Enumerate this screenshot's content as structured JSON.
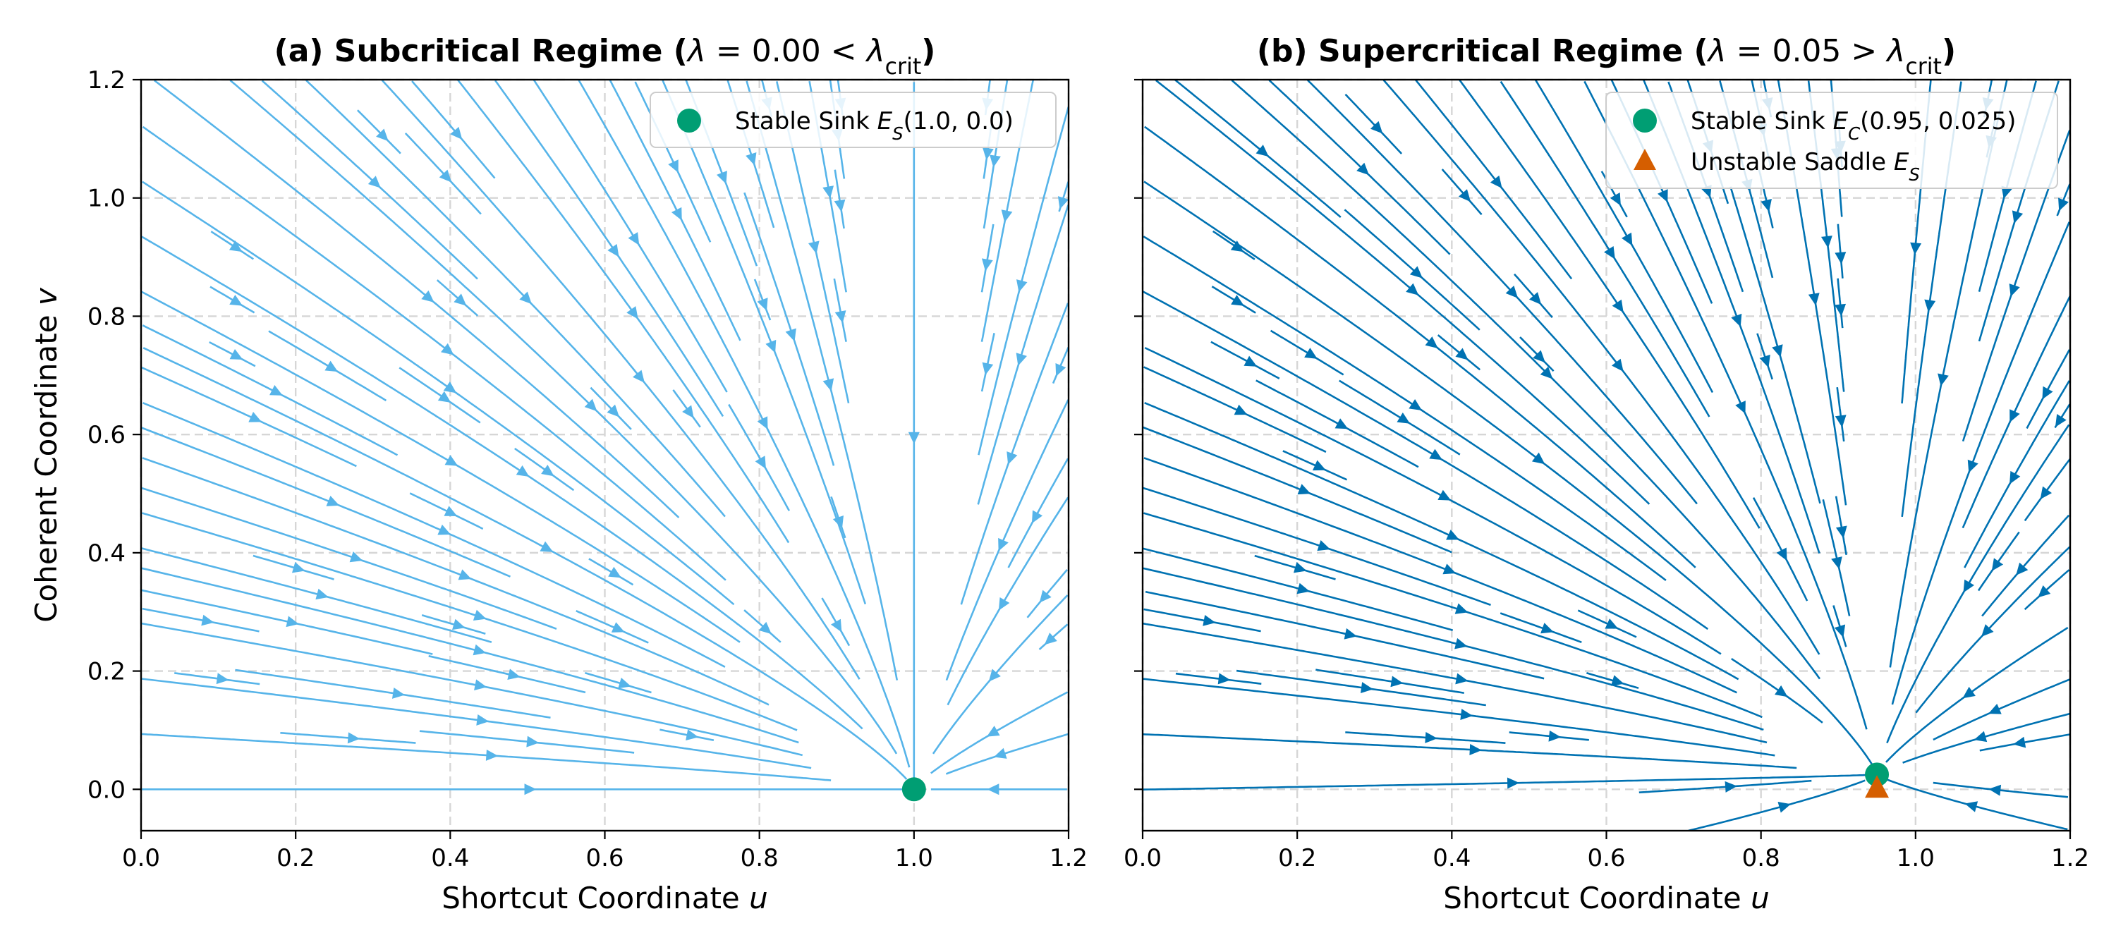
{
  "colors": {
    "streams_left": "#56b4e9",
    "streams_right": "#0072b2",
    "sink": "#009e73",
    "saddle": "#d55e00",
    "grid": "#d6d6d6",
    "axes": "#000000"
  },
  "chart_data": [
    {
      "type": "streamplot",
      "title": {
        "prefix": "(a) Subcritical Regime (",
        "lambda": "λ",
        "relation": " = 0.00 < ",
        "lambda_crit": "λ",
        "crit_sub": "crit",
        "suffix": ")"
      },
      "xlabel": {
        "text": "Shortcut Coordinate ",
        "symbol": "u"
      },
      "ylabel": {
        "text": "Coherent Coordinate ",
        "symbol": "v"
      },
      "xlim": [
        0.0,
        1.2
      ],
      "ylim": [
        -0.07,
        1.2
      ],
      "xticks": [
        "0.0",
        "0.2",
        "0.4",
        "0.6",
        "0.8",
        "1.0",
        "1.2"
      ],
      "yticks": [
        "0.0",
        "0.2",
        "0.4",
        "0.6",
        "0.8",
        "1.0",
        "1.2"
      ],
      "grid": true,
      "legend_position": "upper right",
      "field": {
        "sink": [
          1.0,
          0.0
        ],
        "lambda": 0.0
      },
      "markers": [
        {
          "kind": "sink",
          "x": 1.0,
          "y": 0.0,
          "label": "Stable Sink ",
          "label_symbol": "E",
          "label_sub": "S",
          "label_tail": "(1.0, 0.0)"
        }
      ]
    },
    {
      "type": "streamplot",
      "title": {
        "prefix": "(b) Supercritical Regime (",
        "lambda": "λ",
        "relation": " = 0.05 > ",
        "lambda_crit": "λ",
        "crit_sub": "crit",
        "suffix": ")"
      },
      "xlabel": {
        "text": "Shortcut Coordinate ",
        "symbol": "u"
      },
      "ylabel": {
        "text": "",
        "symbol": ""
      },
      "xlim": [
        0.0,
        1.2
      ],
      "ylim": [
        -0.07,
        1.2
      ],
      "xticks": [
        "0.0",
        "0.2",
        "0.4",
        "0.6",
        "0.8",
        "1.0",
        "1.2"
      ],
      "yticks": [],
      "grid": true,
      "legend_position": "upper right",
      "field": {
        "sink": [
          0.95,
          0.025
        ],
        "lambda": 0.05
      },
      "markers": [
        {
          "kind": "sink",
          "x": 0.95,
          "y": 0.025,
          "label": "Stable Sink ",
          "label_symbol": "E",
          "label_sub": "C",
          "label_tail": "(0.95, 0.025)"
        },
        {
          "kind": "saddle",
          "x": 0.95,
          "y": 0.0,
          "label": "Unstable Saddle ",
          "label_symbol": "E",
          "label_sub": "S",
          "label_tail": ""
        }
      ]
    }
  ]
}
